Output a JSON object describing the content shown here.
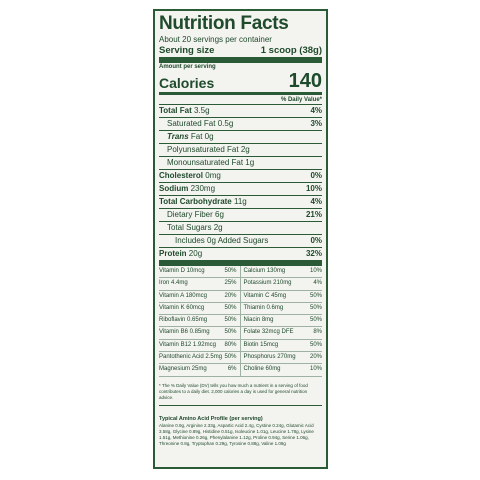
{
  "label": {
    "title": "Nutrition Facts",
    "servings": "About 20 servings per container",
    "serving_size_label": "Serving size",
    "serving_size_value": "1 scoop (38g)",
    "amount_per_serving": "Amount per serving",
    "calories_label": "Calories",
    "calories_value": "140",
    "daily_value_header": "% Daily Value*",
    "nutrients": [
      {
        "name": "Total Fat",
        "amount": "3.5g",
        "pct": "4%"
      },
      {
        "name": "Saturated Fat",
        "amount": "0.5g",
        "pct": "3%"
      },
      {
        "name": "Trans",
        "amount": "Fat 0g",
        "pct": ""
      },
      {
        "name": "Polyunsaturated Fat",
        "amount": "2g",
        "pct": ""
      },
      {
        "name": "Monounsaturated Fat",
        "amount": "1g",
        "pct": ""
      },
      {
        "name": "Cholesterol",
        "amount": "0mg",
        "pct": "0%"
      },
      {
        "name": "Sodium",
        "amount": "230mg",
        "pct": "10%"
      },
      {
        "name": "Total Carbohydrate",
        "amount": "11g",
        "pct": "4%"
      },
      {
        "name": "Dietary Fiber",
        "amount": "6g",
        "pct": "21%"
      },
      {
        "name": "Total Sugars",
        "amount": "2g",
        "pct": ""
      },
      {
        "name": "Includes 0g Added Sugars",
        "amount": "",
        "pct": "0%"
      },
      {
        "name": "Protein",
        "amount": "20g",
        "pct": "32%"
      }
    ],
    "vitamins": [
      {
        "l_name": "Vitamin D 10mcg",
        "l_pct": "50%",
        "r_name": "Calcium 130mg",
        "r_pct": "10%"
      },
      {
        "l_name": "Iron 4.4mg",
        "l_pct": "25%",
        "r_name": "Potassium 210mg",
        "r_pct": "4%"
      },
      {
        "l_name": "Vitamin A 180mcg",
        "l_pct": "20%",
        "r_name": "Vitamin C 45mg",
        "r_pct": "50%"
      },
      {
        "l_name": "Vitamin K 60mcg",
        "l_pct": "50%",
        "r_name": "Thiamin 0.6mg",
        "r_pct": "50%"
      },
      {
        "l_name": "Riboflavin 0.65mg",
        "l_pct": "50%",
        "r_name": "Niacin 8mg",
        "r_pct": "50%"
      },
      {
        "l_name": "Vitamin B6 0.85mg",
        "l_pct": "50%",
        "r_name": "Folate 32mcg DFE",
        "r_pct": "8%"
      },
      {
        "l_name": "Vitamin B12 1.92mcg",
        "l_pct": "80%",
        "r_name": "Biotin 15mcg",
        "r_pct": "50%"
      },
      {
        "l_name": "Pantothenic Acid 2.5mg",
        "l_pct": "50%",
        "r_name": "Phosphorus 270mg",
        "r_pct": "20%"
      },
      {
        "l_name": "Magnesium 25mg",
        "l_pct": "6%",
        "r_name": "Choline 60mg",
        "r_pct": "10%"
      }
    ],
    "footnote": "* The % Daily Value (DV) tells you how much a nutrient in a serving of food contributes to a daily diet. 2,000 calories a day is used for general nutrition advice.",
    "amino_title": "Typical Amino Acid Profile (per serving)",
    "amino_text": "Alanine 0.9g, Arginine 2.33g, Aspartic Acid 2.4g, Cystine 0.24g, Glutamic Acid 3.58g, Glycine 0.89g, Histidine 0.51g, Isoleucine 1.01g, Leucine 1.78g, Lysine 1.51g, Methionine 0.26g, Phenylalanine 1.12g, Proline 0.94g, Serine 1.06g, Threonine 0.8g, Tryptophan 0.29g, Tyrosine 0.88g, Valine 1.08g"
  }
}
